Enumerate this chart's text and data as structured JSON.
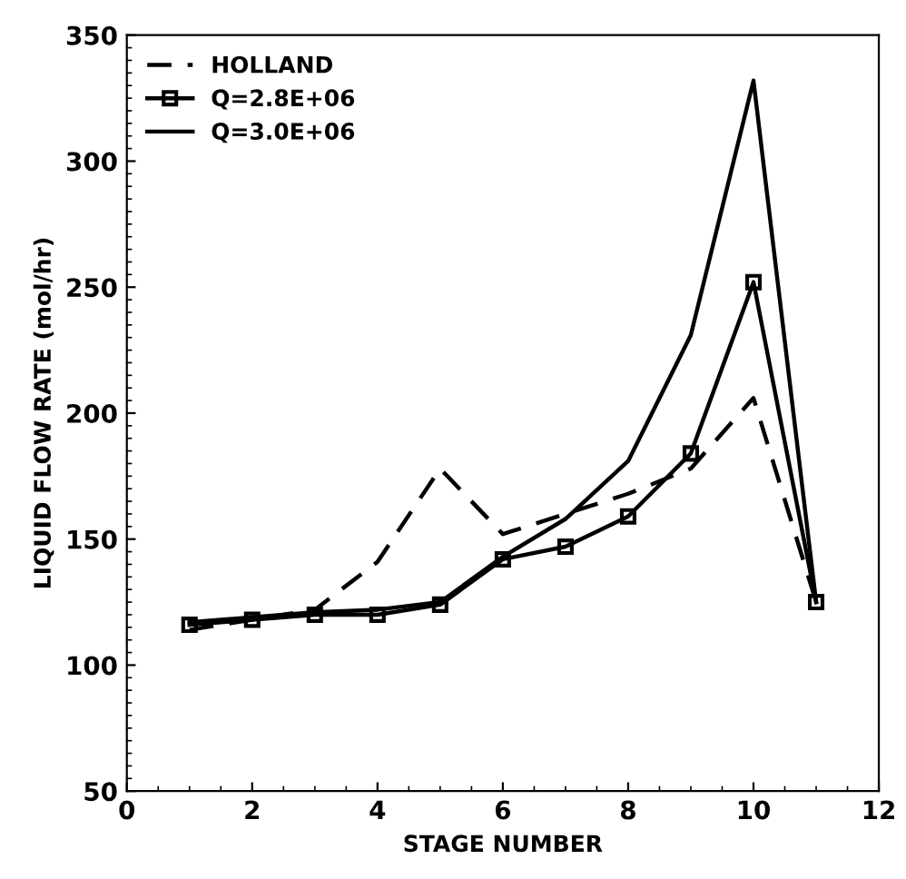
{
  "chart_data": {
    "type": "line",
    "xlabel": "STAGE NUMBER",
    "ylabel": "LIQUID FLOW RATE (mol/hr)",
    "x": [
      1,
      2,
      3,
      4,
      5,
      6,
      7,
      8,
      9,
      10,
      11
    ],
    "series": [
      {
        "name": "HOLLAND",
        "color": "#000000",
        "line_style": "dashed",
        "marker": "none",
        "values": [
          114,
          118,
          122,
          141,
          178,
          152,
          160,
          168,
          178,
          206,
          125
        ]
      },
      {
        "name": "Q=2.8E+06",
        "color": "#000000",
        "line_style": "solid",
        "marker": "square",
        "values": [
          116,
          118,
          120,
          120,
          124,
          142,
          147,
          159,
          184,
          252,
          125
        ]
      },
      {
        "name": "Q=3.0E+06",
        "color": "#000000",
        "line_style": "solid",
        "marker": "none",
        "values": [
          117,
          119,
          121,
          122,
          125,
          143,
          158,
          181,
          231,
          332,
          125
        ]
      }
    ],
    "xlim": [
      0,
      12
    ],
    "xticks": [
      0,
      2,
      4,
      6,
      8,
      10,
      12
    ],
    "ylim": [
      50,
      350
    ],
    "yticks": [
      50,
      100,
      150,
      200,
      250,
      300,
      350
    ],
    "grid": false,
    "legend": "top left"
  }
}
